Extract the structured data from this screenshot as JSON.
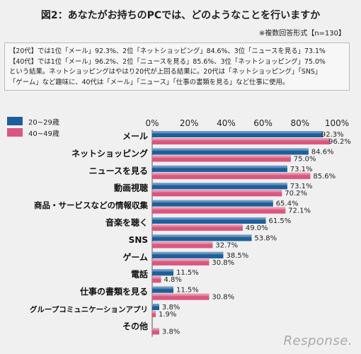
{
  "title": "図2：あなたがお持ちのPCでは、どのようなことを行いますか",
  "note": "※複数回答形式【n=130】",
  "summary": [
    "【20代】では1位「メール」92.3%、2位「ネットショッピング」84.6%、3位「ニュースを見る」73.1%",
    "【40代】では1位「メール」96.2%、2位「ニュースを見る」85.6%、3位「ネットショッピング」75.0%",
    "という結果。ネットショッピングはやはり20代が上回る結果に。20代は「ネットショッピング」「SNS」",
    "「ゲーム」など趣味に、40代は「メール」「ニュース」「仕事の書類を見る」など仕事に使用。"
  ],
  "logo": "Response.",
  "colors": {
    "blue": "#1e5f9a",
    "pink": "#d9577e"
  },
  "chart_data": {
    "type": "bar",
    "orientation": "horizontal",
    "categories": [
      "メール",
      "ネットショッピング",
      "ニュースを見る",
      "動画視聴",
      "商品・サービスなどの情報収集",
      "音楽を聴く",
      "SNS",
      "ゲーム",
      "電話",
      "仕事の書類を見る",
      "グループコミュニケーションアプリ",
      "その他"
    ],
    "series": [
      {
        "name": "20~29歳",
        "color": "#1e5f9a",
        "values": [
          92.3,
          84.6,
          73.1,
          73.1,
          65.4,
          61.5,
          53.8,
          38.5,
          11.5,
          11.5,
          3.8,
          null
        ],
        "labels": [
          "92.3%",
          "84.6%",
          "73.1%",
          "73.1%",
          "65.4%",
          "61.5%",
          "53.8%",
          "38.5%",
          "11.5%",
          "11.5%",
          "3.8%",
          ""
        ]
      },
      {
        "name": "40~49歳",
        "color": "#d9577e",
        "values": [
          96.2,
          75.0,
          85.6,
          70.2,
          72.1,
          49.0,
          32.7,
          30.8,
          4.8,
          30.8,
          1.9,
          3.8
        ],
        "labels": [
          "96.2%",
          "75.0%",
          "85.6%",
          "70.2%",
          "72.1%",
          "49.0%",
          "32.7%",
          "30.8%",
          "4.8%",
          "30.8%",
          "1.9%",
          "3.8%"
        ]
      }
    ],
    "xlim": [
      0,
      100
    ],
    "xticks": [
      "0%",
      "20%",
      "40%",
      "60%",
      "80%",
      "100%"
    ],
    "legend": "top-left",
    "grid": false
  }
}
